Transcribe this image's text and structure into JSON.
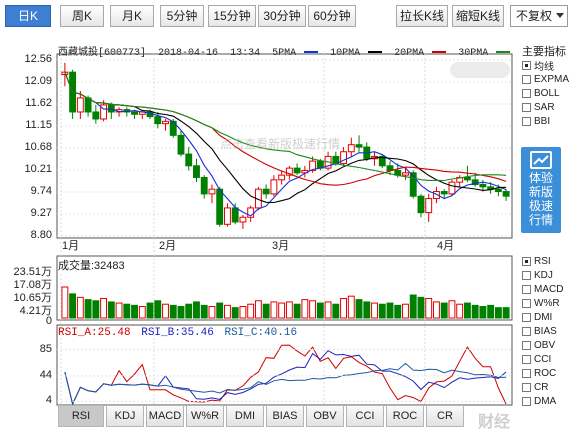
{
  "toolbar": {
    "periods": [
      "日K",
      "周K",
      "月K",
      "5分钟",
      "15分钟",
      "30分钟",
      "60分钟"
    ],
    "active_period": "日K",
    "stretch_label": "拉长K线",
    "shrink_label": "缩短K线",
    "adjust_select": "不复权"
  },
  "stock": {
    "name": "西藏城投",
    "code": "[600773]",
    "date": "2018-04-16",
    "time": "13:34"
  },
  "ma_legend": [
    {
      "label": "5PMA",
      "color": "#1a2fd0"
    },
    {
      "label": "10PMA",
      "color": "#000000"
    },
    {
      "label": "20PMA",
      "color": "#d00000"
    },
    {
      "label": "30PMA",
      "color": "#1a8a1a"
    }
  ],
  "price_axis": [
    "12.56",
    "12.09",
    "11.62",
    "11.15",
    "10.68",
    "10.21",
    "9.74",
    "9.27",
    "8.80"
  ],
  "months": [
    "1月",
    "2月",
    "3月",
    "4月"
  ],
  "volume": {
    "title": "成交量:32483",
    "axis": [
      "23.51万",
      "17.08万",
      "10.65万",
      "4.21万",
      "0"
    ]
  },
  "rsi": {
    "a": "RSI_A:25.48",
    "b": "RSI_B:35.46",
    "c": "RSI_C:40.16",
    "axis": [
      "85",
      "44",
      "4"
    ]
  },
  "tabs": [
    "RSI",
    "KDJ",
    "MACD",
    "W%R",
    "DMI",
    "BIAS",
    "OBV",
    "CCI",
    "ROC",
    "CR"
  ],
  "sidebar": {
    "title": "主要指标",
    "main": [
      {
        "label": "均线",
        "checked": true
      },
      {
        "label": "EXPMA",
        "checked": false
      },
      {
        "label": "BOLL",
        "checked": false
      },
      {
        "label": "SAR",
        "checked": false
      },
      {
        "label": "BBI",
        "checked": false
      }
    ],
    "promo": [
      "体验",
      "新版",
      "极速",
      "行情"
    ],
    "secondary": [
      {
        "label": "RSI",
        "checked": true
      },
      {
        "label": "KDJ",
        "checked": false
      },
      {
        "label": "MACD",
        "checked": false
      },
      {
        "label": "W%R",
        "checked": false
      },
      {
        "label": "DMI",
        "checked": false
      },
      {
        "label": "BIAS",
        "checked": false
      },
      {
        "label": "OBV",
        "checked": false
      },
      {
        "label": "CCI",
        "checked": false
      },
      {
        "label": "ROC",
        "checked": false
      },
      {
        "label": "CR",
        "checked": false
      },
      {
        "label": "DMA",
        "checked": false
      }
    ]
  },
  "watermark": "点击查看新版极速行情",
  "corner_logo": "财经",
  "colors": {
    "up": "#e60000",
    "down": "#008000",
    "active_tab": "#3d7fd3",
    "promo": "#3b8ed8"
  },
  "chart_data": {
    "type": "candlestick",
    "ylim": [
      8.8,
      12.56
    ],
    "candles": [
      [
        12.25,
        12.5,
        12.0,
        12.3
      ],
      [
        12.3,
        12.35,
        11.3,
        11.45
      ],
      [
        11.45,
        11.9,
        11.3,
        11.75
      ],
      [
        11.75,
        11.8,
        11.35,
        11.45
      ],
      [
        11.45,
        11.6,
        11.2,
        11.3
      ],
      [
        11.3,
        11.7,
        11.25,
        11.6
      ],
      [
        11.6,
        11.65,
        11.3,
        11.45
      ],
      [
        11.45,
        11.55,
        11.35,
        11.5
      ],
      [
        11.5,
        11.55,
        11.35,
        11.45
      ],
      [
        11.45,
        11.5,
        11.3,
        11.4
      ],
      [
        11.4,
        11.5,
        11.3,
        11.45
      ],
      [
        11.45,
        11.5,
        11.3,
        11.35
      ],
      [
        11.35,
        11.45,
        11.1,
        11.2
      ],
      [
        11.2,
        11.3,
        11.05,
        11.25
      ],
      [
        11.25,
        11.3,
        10.9,
        10.95
      ],
      [
        10.95,
        11.05,
        10.5,
        10.55
      ],
      [
        10.55,
        10.7,
        10.2,
        10.3
      ],
      [
        10.3,
        10.45,
        9.95,
        10.05
      ],
      [
        10.05,
        10.1,
        9.6,
        9.7
      ],
      [
        9.7,
        9.9,
        9.5,
        9.8
      ],
      [
        9.8,
        9.85,
        9.0,
        9.05
      ],
      [
        9.05,
        9.5,
        9.0,
        9.4
      ],
      [
        9.4,
        9.5,
        9.05,
        9.1
      ],
      [
        9.1,
        9.25,
        8.95,
        9.2
      ],
      [
        9.2,
        9.45,
        9.1,
        9.4
      ],
      [
        9.4,
        9.85,
        9.35,
        9.8
      ],
      [
        9.8,
        9.9,
        9.6,
        9.7
      ],
      [
        9.7,
        10.1,
        9.65,
        10.0
      ],
      [
        10.0,
        10.2,
        9.9,
        10.1
      ],
      [
        10.1,
        10.3,
        10.0,
        10.25
      ],
      [
        10.25,
        10.35,
        10.1,
        10.15
      ],
      [
        10.15,
        10.3,
        10.05,
        10.2
      ],
      [
        10.2,
        10.5,
        10.15,
        10.4
      ],
      [
        10.4,
        10.45,
        10.2,
        10.25
      ],
      [
        10.25,
        10.6,
        10.2,
        10.5
      ],
      [
        10.5,
        10.6,
        10.3,
        10.35
      ],
      [
        10.35,
        10.7,
        10.3,
        10.6
      ],
      [
        10.6,
        10.9,
        10.5,
        10.75
      ],
      [
        10.75,
        10.95,
        10.6,
        10.7
      ],
      [
        10.7,
        10.8,
        10.4,
        10.45
      ],
      [
        10.45,
        10.6,
        10.3,
        10.5
      ],
      [
        10.5,
        10.55,
        10.25,
        10.3
      ],
      [
        10.3,
        10.4,
        10.1,
        10.2
      ],
      [
        10.2,
        10.35,
        10.05,
        10.1
      ],
      [
        10.1,
        10.25,
        10.0,
        10.15
      ],
      [
        10.15,
        10.2,
        9.6,
        9.65
      ],
      [
        9.65,
        9.7,
        9.2,
        9.3
      ],
      [
        9.3,
        9.7,
        9.1,
        9.6
      ],
      [
        9.6,
        9.85,
        9.5,
        9.75
      ],
      [
        9.75,
        9.8,
        9.6,
        9.7
      ],
      [
        9.7,
        10.0,
        9.65,
        9.95
      ],
      [
        9.95,
        10.1,
        9.85,
        10.05
      ],
      [
        10.05,
        10.3,
        9.95,
        10.0
      ],
      [
        10.0,
        10.15,
        9.85,
        9.9
      ],
      [
        9.9,
        10.0,
        9.75,
        9.85
      ],
      [
        9.85,
        9.95,
        9.7,
        9.8
      ],
      [
        9.8,
        9.9,
        9.65,
        9.75
      ],
      [
        9.75,
        9.8,
        9.55,
        9.65
      ]
    ],
    "volumes": [
      13.5,
      10.5,
      9.0,
      8.0,
      7.5,
      8.5,
      7.0,
      6.5,
      6.0,
      5.5,
      5.0,
      6.5,
      7.5,
      6.0,
      5.5,
      5.0,
      6.0,
      7.0,
      5.5,
      5.0,
      6.5,
      5.5,
      4.5,
      5.0,
      6.0,
      7.5,
      6.0,
      7.0,
      6.5,
      7.0,
      6.0,
      8.0,
      7.5,
      6.5,
      7.0,
      6.0,
      8.5,
      9.5,
      8.0,
      7.0,
      6.5,
      6.0,
      6.5,
      5.5,
      6.0,
      10.0,
      9.0,
      8.5,
      7.0,
      6.5,
      7.5,
      6.0,
      6.5,
      5.5,
      5.0,
      5.5,
      4.5,
      4.5
    ],
    "volume_ylim": [
      0,
      23.51
    ],
    "rsi_ylim": [
      0,
      100
    ]
  }
}
